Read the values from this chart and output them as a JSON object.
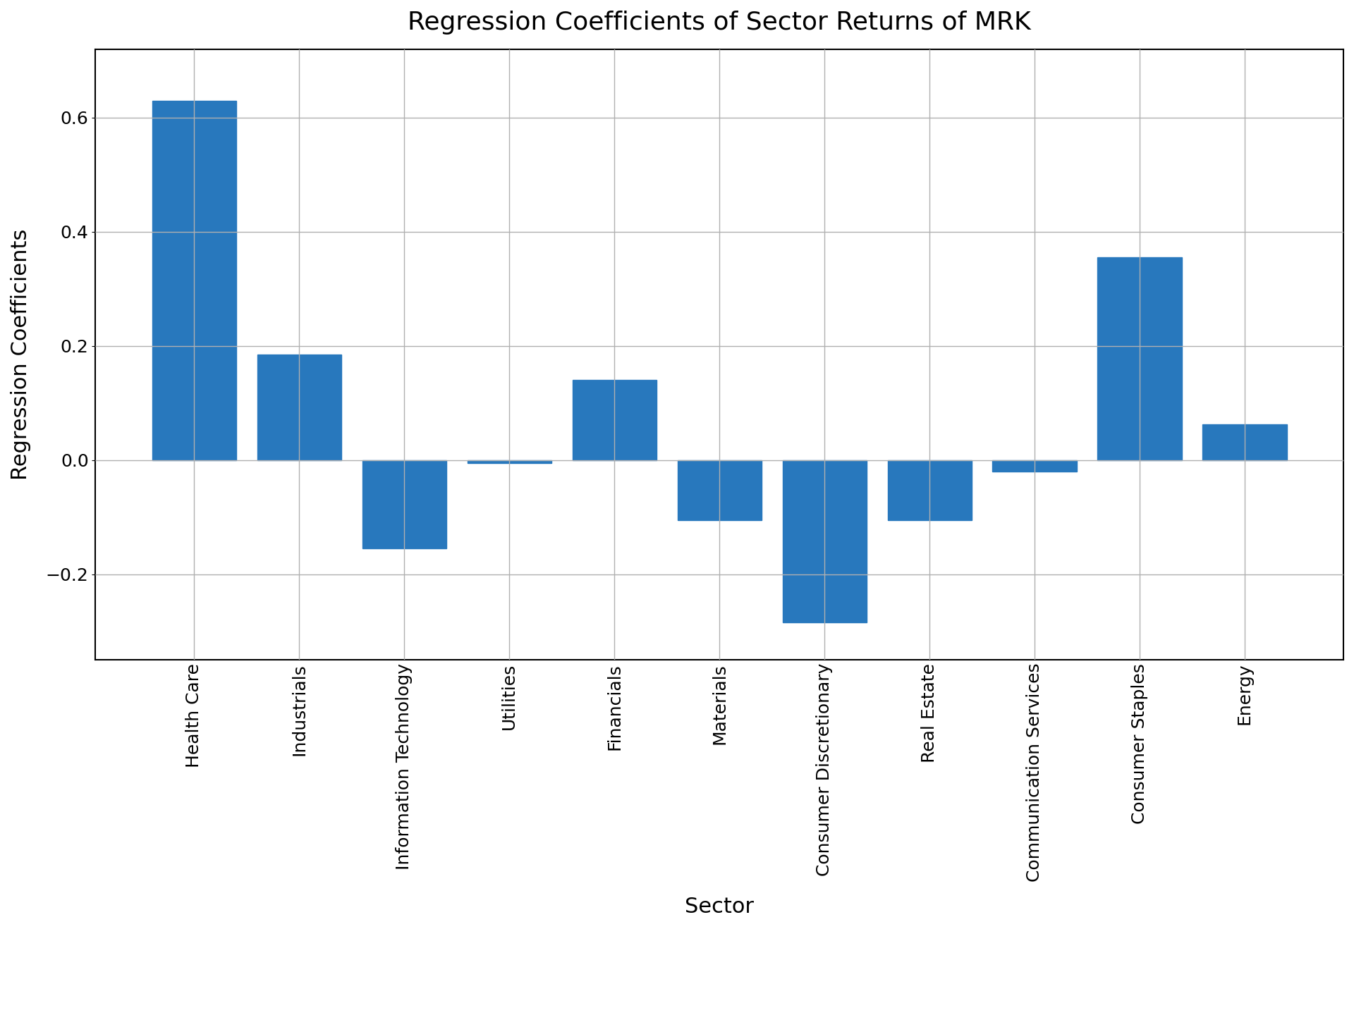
{
  "title": "Regression Coefficients of Sector Returns of MRK",
  "xlabel": "Sector",
  "ylabel": "Regression Coefficients",
  "categories": [
    "Health Care",
    "Industrials",
    "Information Technology",
    "Utilities",
    "Financials",
    "Materials",
    "Consumer Discretionary",
    "Real Estate",
    "Communication Services",
    "Consumer Staples",
    "Energy"
  ],
  "values": [
    0.63,
    0.185,
    -0.155,
    -0.005,
    0.14,
    -0.105,
    -0.285,
    -0.105,
    -0.02,
    0.355,
    0.062
  ],
  "bar_color": "#2878bd",
  "background_color": "#ffffff",
  "ylim": [
    -0.35,
    0.72
  ],
  "grid_color": "#b0b0b0",
  "title_fontsize": 26,
  "label_fontsize": 22,
  "tick_fontsize": 18,
  "figsize": [
    19.2,
    14.4
  ],
  "dpi": 100
}
